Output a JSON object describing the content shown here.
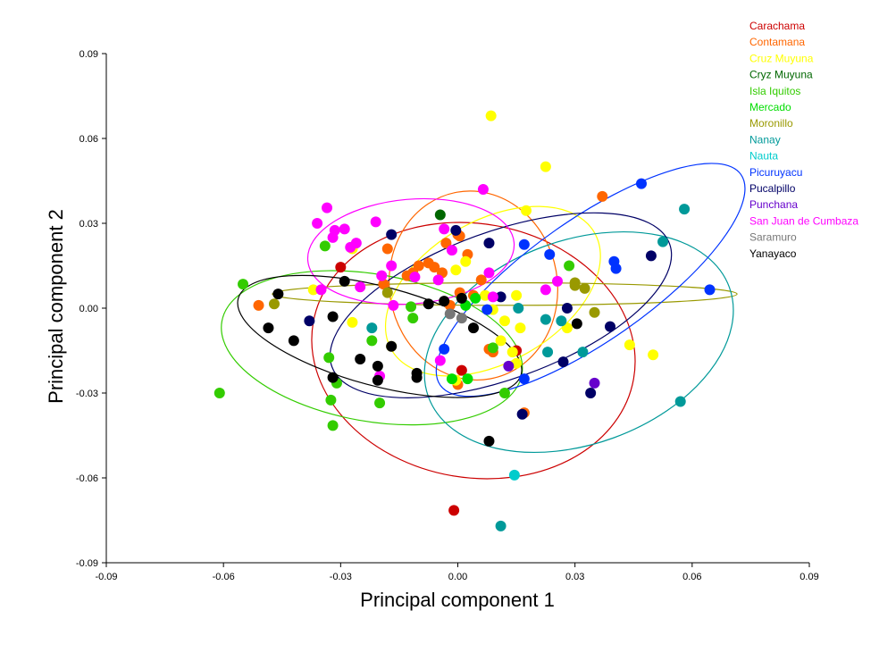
{
  "chart_data": {
    "type": "scatter",
    "title": "",
    "xlabel": "Principal component 1",
    "ylabel": "Principal component 2",
    "xlim": [
      -0.09,
      0.09
    ],
    "ylim": [
      -0.09,
      0.09
    ],
    "xticks": [
      "-0.09",
      "-0.06",
      "-0.03",
      "0.00",
      "0.03",
      "0.06",
      "0.09"
    ],
    "yticks": [
      "-0.09",
      "-0.06",
      "-0.03",
      "0.00",
      "0.03",
      "0.06",
      "0.09"
    ],
    "grid": false,
    "legend_position": "top-right",
    "series": [
      {
        "name": "Carachama",
        "color": "#cc0000",
        "points": [
          [
            -0.03,
            0.0145
          ],
          [
            0.015,
            -0.015
          ],
          [
            -0.001,
            -0.0715
          ],
          [
            0.001,
            -0.022
          ]
        ],
        "ellipse": {
          "center": [
            0.004,
            -0.015
          ],
          "rx": 0.0325,
          "ry": 0.0575,
          "angle": -80
        }
      },
      {
        "name": "Contamana",
        "color": "#ff6600",
        "points": [
          [
            -0.051,
            0.001
          ],
          [
            -0.019,
            0.0085
          ],
          [
            -0.018,
            0.021
          ],
          [
            -0.013,
            0.0115
          ],
          [
            -0.0115,
            0.0125
          ],
          [
            -0.01,
            0.015
          ],
          [
            -0.0075,
            0.016
          ],
          [
            -0.004,
            0.0125
          ],
          [
            -0.003,
            0.023
          ],
          [
            -0.002,
            0.001
          ],
          [
            0.0,
            0.026
          ],
          [
            0.0005,
            0.0055
          ],
          [
            0.0005,
            0.0255
          ],
          [
            0.0025,
            0.019
          ],
          [
            0.004,
            0.0045
          ],
          [
            0.006,
            0.01
          ],
          [
            0.008,
            -0.0145
          ],
          [
            0.009,
            -0.0155
          ],
          [
            0.0,
            -0.027
          ],
          [
            0.017,
            -0.037
          ],
          [
            0.037,
            0.0395
          ],
          [
            -0.006,
            0.0145
          ]
        ],
        "ellipse": {
          "center": [
            0.004,
            0.008
          ],
          "rx": 0.0215,
          "ry": 0.0335,
          "angle": -10
        }
      },
      {
        "name": "Cruz Muyuna",
        "color": "#ffff00",
        "points": [
          [
            -0.037,
            0.0065
          ],
          [
            -0.027,
            0.021
          ],
          [
            -0.027,
            -0.005
          ],
          [
            -0.017,
            -0.0135
          ],
          [
            -0.0005,
            0.0135
          ],
          [
            0.002,
            0.0165
          ],
          [
            0.007,
            0.0045
          ],
          [
            0.0085,
            0.068
          ],
          [
            0.009,
            -0.0005
          ],
          [
            0.011,
            -0.0115
          ],
          [
            0.012,
            -0.0045
          ],
          [
            0.014,
            -0.0155
          ],
          [
            0.015,
            0.0045
          ],
          [
            0.015,
            -0.0195
          ],
          [
            0.016,
            -0.007
          ],
          [
            0.0175,
            0.0345
          ],
          [
            0.0225,
            0.05
          ],
          [
            0.028,
            -0.007
          ],
          [
            0.044,
            -0.013
          ],
          [
            0.05,
            -0.0165
          ],
          [
            -0.0005,
            -0.0255
          ]
        ],
        "ellipse": {
          "center": [
            0.009,
            0.006
          ],
          "rx": 0.03,
          "ry": 0.025,
          "angle": -30
        }
      },
      {
        "name": "Cryz Muyuna",
        "color": "#006600",
        "points": [
          [
            -0.0045,
            0.033
          ]
        ],
        "ellipse": null
      },
      {
        "name": "Isla Iquitos",
        "color": "#33cc00",
        "points": [
          [
            -0.061,
            -0.03
          ],
          [
            -0.055,
            0.0085
          ],
          [
            -0.034,
            0.022
          ],
          [
            -0.033,
            -0.0175
          ],
          [
            -0.0325,
            -0.0325
          ],
          [
            -0.032,
            -0.0415
          ],
          [
            -0.031,
            -0.0265
          ],
          [
            -0.022,
            -0.0115
          ],
          [
            -0.02,
            -0.0335
          ],
          [
            -0.0115,
            -0.0035
          ],
          [
            0.012,
            -0.03
          ],
          [
            -0.012,
            0.0005
          ],
          [
            0.009,
            -0.014
          ],
          [
            0.0285,
            0.015
          ]
        ],
        "ellipse": {
          "center": [
            -0.022,
            -0.014
          ],
          "rx": 0.039,
          "ry": 0.026,
          "angle": 10
        }
      },
      {
        "name": "Mercado",
        "color": "#00dd00",
        "points": [
          [
            0.002,
            0.001
          ],
          [
            0.0025,
            -0.025
          ],
          [
            0.0045,
            0.0035
          ],
          [
            -0.0015,
            -0.025
          ]
        ],
        "ellipse": null
      },
      {
        "name": "Moronillo",
        "color": "#999900",
        "points": [
          [
            -0.047,
            0.0015
          ],
          [
            -0.018,
            0.0055
          ],
          [
            0.03,
            0.008
          ],
          [
            0.03,
            0.009
          ],
          [
            0.0325,
            0.007
          ],
          [
            0.035,
            -0.0015
          ]
        ],
        "ellipse": {
          "center": [
            0.012,
            0.005
          ],
          "rx": 0.0595,
          "ry": 0.004,
          "angle": 0
        }
      },
      {
        "name": "Nanay",
        "color": "#009999",
        "points": [
          [
            -0.022,
            -0.007
          ],
          [
            0.0155,
            0.0
          ],
          [
            0.0225,
            -0.004
          ],
          [
            0.023,
            -0.0155
          ],
          [
            0.0265,
            -0.0045
          ],
          [
            0.032,
            -0.0155
          ],
          [
            0.0525,
            0.0235
          ],
          [
            0.057,
            -0.033
          ],
          [
            0.058,
            0.035
          ],
          [
            0.011,
            -0.077
          ]
        ],
        "ellipse": {
          "center": [
            0.031,
            -0.012
          ],
          "rx": 0.041,
          "ry": 0.036,
          "angle": -20
        }
      },
      {
        "name": "Nauta",
        "color": "#00cccc",
        "points": [
          [
            0.0145,
            -0.059
          ]
        ],
        "ellipse": null
      },
      {
        "name": "Picuruyacu",
        "color": "#0033ff",
        "points": [
          [
            -0.0035,
            -0.0145
          ],
          [
            0.0075,
            -0.0005
          ],
          [
            0.017,
            0.0225
          ],
          [
            0.017,
            -0.025
          ],
          [
            0.0235,
            0.019
          ],
          [
            0.04,
            0.0165
          ],
          [
            0.0405,
            0.014
          ],
          [
            0.047,
            0.044
          ],
          [
            0.0645,
            0.0065
          ]
        ],
        "ellipse": {
          "center": [
            0.034,
            0.01
          ],
          "rx": 0.047,
          "ry": 0.0215,
          "angle": -35
        }
      },
      {
        "name": "Pucalpillo",
        "color": "#000066",
        "points": [
          [
            -0.038,
            -0.0045
          ],
          [
            -0.017,
            0.026
          ],
          [
            -0.0005,
            0.0275
          ],
          [
            0.008,
            0.023
          ],
          [
            0.011,
            0.004
          ],
          [
            0.0165,
            -0.0375
          ],
          [
            0.028,
            0.0
          ],
          [
            0.027,
            -0.019
          ],
          [
            0.034,
            -0.03
          ],
          [
            0.039,
            -0.0065
          ],
          [
            0.0495,
            0.0185
          ]
        ],
        "ellipse": {
          "center": [
            0.011,
            0.001
          ],
          "rx": 0.046,
          "ry": 0.026,
          "angle": -20
        }
      },
      {
        "name": "Punchana",
        "color": "#6600cc",
        "points": [
          [
            0.013,
            -0.0205
          ],
          [
            0.035,
            -0.0265
          ]
        ],
        "ellipse": null
      },
      {
        "name": "San Juan de Cumbaza",
        "color": "#ff00ff",
        "points": [
          [
            -0.036,
            0.03
          ],
          [
            -0.035,
            0.0065
          ],
          [
            -0.0335,
            0.0355
          ],
          [
            -0.032,
            0.025
          ],
          [
            -0.0315,
            0.0275
          ],
          [
            -0.029,
            0.028
          ],
          [
            -0.0275,
            0.0215
          ],
          [
            -0.026,
            0.023
          ],
          [
            -0.025,
            0.0075
          ],
          [
            -0.021,
            0.0305
          ],
          [
            -0.0195,
            0.0115
          ],
          [
            -0.017,
            0.015
          ],
          [
            -0.0165,
            0.001
          ],
          [
            -0.011,
            0.011
          ],
          [
            -0.005,
            0.01
          ],
          [
            -0.0035,
            0.028
          ],
          [
            -0.0015,
            0.0205
          ],
          [
            0.0065,
            0.042
          ],
          [
            0.008,
            0.0125
          ],
          [
            0.009,
            0.004
          ],
          [
            0.0225,
            0.0065
          ],
          [
            0.0255,
            0.0095
          ],
          [
            -0.0045,
            -0.0185
          ],
          [
            -0.02,
            -0.024
          ]
        ],
        "ellipse": {
          "center": [
            -0.012,
            0.02
          ],
          "rx": 0.0265,
          "ry": 0.0185,
          "angle": -5
        }
      },
      {
        "name": "Saramuro",
        "color": "#777777",
        "points": [
          [
            -0.002,
            -0.002
          ],
          [
            0.001,
            -0.0035
          ]
        ],
        "ellipse": null
      },
      {
        "name": "Yanayaco",
        "color": "#000000",
        "points": [
          [
            -0.0485,
            -0.007
          ],
          [
            -0.046,
            0.005
          ],
          [
            -0.042,
            -0.0115
          ],
          [
            -0.032,
            -0.003
          ],
          [
            -0.032,
            -0.0245
          ],
          [
            -0.029,
            0.0095
          ],
          [
            -0.025,
            -0.018
          ],
          [
            -0.0205,
            -0.0205
          ],
          [
            -0.0205,
            -0.0255
          ],
          [
            -0.017,
            -0.0135
          ],
          [
            -0.0105,
            -0.023
          ],
          [
            -0.0105,
            -0.0245
          ],
          [
            -0.0075,
            0.0015
          ],
          [
            -0.0035,
            0.0025
          ],
          [
            0.001,
            0.0035
          ],
          [
            0.004,
            -0.007
          ],
          [
            0.008,
            -0.047
          ],
          [
            0.0305,
            -0.0055
          ]
        ],
        "ellipse": {
          "center": [
            -0.02,
            -0.01
          ],
          "rx": 0.0375,
          "ry": 0.0175,
          "angle": 15
        }
      }
    ]
  }
}
